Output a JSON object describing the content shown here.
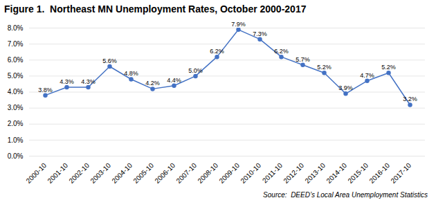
{
  "chart_data": {
    "type": "line",
    "title": "Figure 1.  Northeast MN Unemployment Rates, October 2000-2017",
    "source": "Source:  DEED’s Local Area Unemployment Statistics",
    "categories": [
      "2000-10",
      "2001-10",
      "2002-10",
      "2003-10",
      "2004-10",
      "2005-10",
      "2006-10",
      "2007-10",
      "2008-10",
      "2009-10",
      "2010-10",
      "2011-10",
      "2012-10",
      "2013-10",
      "2014-10",
      "2015-10",
      "2016-10",
      "2017-10"
    ],
    "values": [
      3.8,
      4.3,
      4.3,
      5.6,
      4.8,
      4.2,
      4.4,
      5.0,
      6.2,
      7.9,
      7.3,
      6.2,
      5.7,
      5.2,
      3.9,
      4.7,
      5.2,
      3.2
    ],
    "value_labels": [
      "3.8%",
      "4.3%",
      "4.3%",
      "5.6%",
      "4.8%",
      "4.2%",
      "4.4%",
      "5.0%",
      "6.2%",
      "7.9%",
      "7.3%",
      "6.2%",
      "5.7%",
      "5.2%",
      "3.9%",
      "4.7%",
      "5.2%",
      "3.2%"
    ],
    "data_labels": true,
    "color": "#4472C4",
    "marker": "circle",
    "ylim": [
      0.0,
      8.0
    ],
    "yticks": [
      {
        "value": 0.0,
        "label": "0.0%"
      },
      {
        "value": 1.0,
        "label": "1.0%"
      },
      {
        "value": 2.0,
        "label": "2.0%"
      },
      {
        "value": 3.0,
        "label": "3.0%"
      },
      {
        "value": 4.0,
        "label": "4.0%"
      },
      {
        "value": 5.0,
        "label": "5.0%"
      },
      {
        "value": 6.0,
        "label": "6.0%"
      },
      {
        "value": 7.0,
        "label": "7.0%"
      },
      {
        "value": 8.0,
        "label": "8.0%"
      }
    ],
    "grid": true
  }
}
